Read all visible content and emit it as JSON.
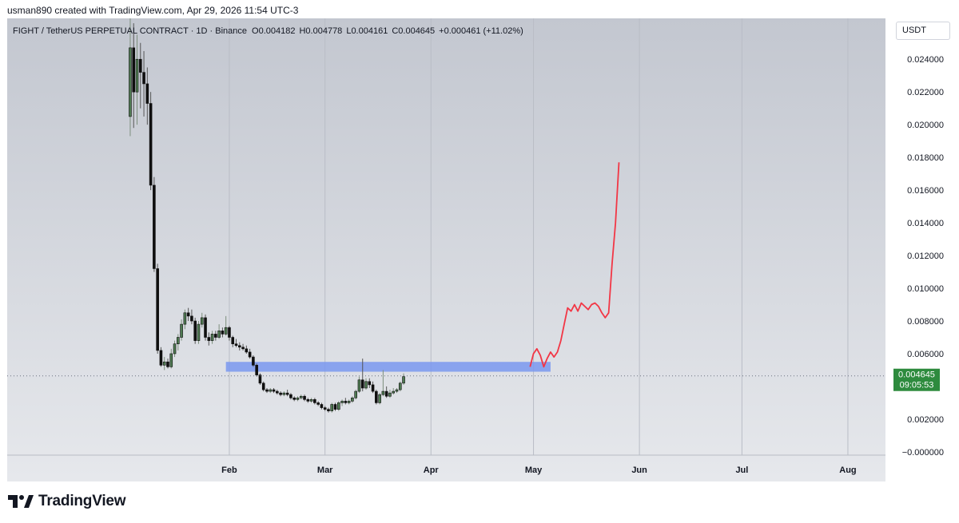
{
  "header": {
    "attribution": "usman890 created with TradingView.com, Apr 29, 2026 11:54 UTC-3"
  },
  "footer": {
    "brand": "TradingView"
  },
  "chart_data": {
    "type": "candlestick",
    "title": "FIGHT / TetherUS PERPETUAL CONTRACT · 1D · Binance",
    "ohlc_text": {
      "open_label": "O",
      "open": "0.004182",
      "high_label": "H",
      "high": "0.004778",
      "low_label": "L",
      "low": "0.004161",
      "close_label": "C",
      "close": "0.004645",
      "change": "+0.000461 (+11.02%)"
    },
    "currency_button": "USDT",
    "y_ticks": [
      "0.024000",
      "0.022000",
      "0.020000",
      "0.018000",
      "0.016000",
      "0.014000",
      "0.012000",
      "0.010000",
      "0.008000",
      "0.006000",
      "0.002000",
      "−0.000000"
    ],
    "y_tick_values": [
      0.024,
      0.022,
      0.02,
      0.018,
      0.016,
      0.014,
      0.012,
      0.01,
      0.008,
      0.006,
      0.002,
      0.0
    ],
    "x_ticks": [
      "Feb",
      "Mar",
      "Apr",
      "May",
      "Jun",
      "Jul",
      "Aug"
    ],
    "x_tick_days": [
      37,
      65,
      96,
      126,
      157,
      187,
      218
    ],
    "ylim": [
      -0.0002,
      0.0265
    ],
    "xlim_days": [
      -28,
      229
    ],
    "last_price": "0.004645",
    "countdown": "09:05:53",
    "last_price_value": 0.004645,
    "zone": {
      "day_start": 36,
      "day_end": 131,
      "low": 0.0049,
      "high": 0.0055,
      "color": "#7a98f0"
    },
    "projection": {
      "color": "#f23645",
      "points": [
        [
          125,
          0.0052
        ],
        [
          126,
          0.006
        ],
        [
          127,
          0.0063
        ],
        [
          128,
          0.0059
        ],
        [
          129,
          0.0052
        ],
        [
          130,
          0.0057
        ],
        [
          131,
          0.0061
        ],
        [
          132,
          0.0058
        ],
        [
          133,
          0.0061
        ],
        [
          134,
          0.0068
        ],
        [
          135,
          0.0078
        ],
        [
          136,
          0.0088
        ],
        [
          137,
          0.0086
        ],
        [
          138,
          0.009
        ],
        [
          139,
          0.0086
        ],
        [
          140,
          0.0091
        ],
        [
          141,
          0.0089
        ],
        [
          142,
          0.0087
        ],
        [
          143,
          0.009
        ],
        [
          144,
          0.0091
        ],
        [
          145,
          0.0089
        ],
        [
          146,
          0.0085
        ],
        [
          147,
          0.0082
        ],
        [
          148,
          0.0085
        ],
        [
          149,
          0.0115
        ],
        [
          150,
          0.014
        ],
        [
          151,
          0.0177
        ]
      ]
    },
    "candles": [
      {
        "d": 0,
        "o": 0.0205,
        "h": 0.0265,
        "l": 0.0193,
        "c": 0.0247
      },
      {
        "d": 1,
        "o": 0.0247,
        "h": 0.0262,
        "l": 0.0198,
        "c": 0.022
      },
      {
        "d": 2,
        "o": 0.022,
        "h": 0.0255,
        "l": 0.02,
        "c": 0.024
      },
      {
        "d": 3,
        "o": 0.024,
        "h": 0.025,
        "l": 0.021,
        "c": 0.0232
      },
      {
        "d": 4,
        "o": 0.0232,
        "h": 0.0245,
        "l": 0.0205,
        "c": 0.0225
      },
      {
        "d": 5,
        "o": 0.0225,
        "h": 0.0235,
        "l": 0.02,
        "c": 0.0213
      },
      {
        "d": 6,
        "o": 0.0213,
        "h": 0.022,
        "l": 0.016,
        "c": 0.0163
      },
      {
        "d": 7,
        "o": 0.0163,
        "h": 0.0168,
        "l": 0.011,
        "c": 0.0112
      },
      {
        "d": 8,
        "o": 0.0112,
        "h": 0.0115,
        "l": 0.006,
        "c": 0.0062
      },
      {
        "d": 9,
        "o": 0.0062,
        "h": 0.0064,
        "l": 0.0052,
        "c": 0.0053
      },
      {
        "d": 10,
        "o": 0.0053,
        "h": 0.0058,
        "l": 0.005,
        "c": 0.0055
      },
      {
        "d": 11,
        "o": 0.0055,
        "h": 0.0057,
        "l": 0.0051,
        "c": 0.0052
      },
      {
        "d": 12,
        "o": 0.0052,
        "h": 0.0063,
        "l": 0.0051,
        "c": 0.006
      },
      {
        "d": 13,
        "o": 0.006,
        "h": 0.0068,
        "l": 0.0058,
        "c": 0.0066
      },
      {
        "d": 14,
        "o": 0.0066,
        "h": 0.0072,
        "l": 0.0062,
        "c": 0.007
      },
      {
        "d": 15,
        "o": 0.007,
        "h": 0.0081,
        "l": 0.0068,
        "c": 0.0078
      },
      {
        "d": 16,
        "o": 0.0078,
        "h": 0.0087,
        "l": 0.0075,
        "c": 0.0085
      },
      {
        "d": 17,
        "o": 0.0085,
        "h": 0.0088,
        "l": 0.008,
        "c": 0.0083
      },
      {
        "d": 18,
        "o": 0.0083,
        "h": 0.0087,
        "l": 0.0078,
        "c": 0.008
      },
      {
        "d": 19,
        "o": 0.008,
        "h": 0.0082,
        "l": 0.0066,
        "c": 0.0068
      },
      {
        "d": 20,
        "o": 0.0068,
        "h": 0.008,
        "l": 0.0066,
        "c": 0.0078
      },
      {
        "d": 21,
        "o": 0.0078,
        "h": 0.0085,
        "l": 0.0076,
        "c": 0.0082
      },
      {
        "d": 22,
        "o": 0.0082,
        "h": 0.0084,
        "l": 0.0068,
        "c": 0.007
      },
      {
        "d": 23,
        "o": 0.007,
        "h": 0.0073,
        "l": 0.0065,
        "c": 0.0068
      },
      {
        "d": 24,
        "o": 0.0068,
        "h": 0.0074,
        "l": 0.0066,
        "c": 0.0072
      },
      {
        "d": 25,
        "o": 0.0072,
        "h": 0.0074,
        "l": 0.0068,
        "c": 0.007
      },
      {
        "d": 26,
        "o": 0.007,
        "h": 0.0078,
        "l": 0.0069,
        "c": 0.0074
      },
      {
        "d": 27,
        "o": 0.0074,
        "h": 0.0076,
        "l": 0.007,
        "c": 0.0072
      },
      {
        "d": 28,
        "o": 0.0072,
        "h": 0.0083,
        "l": 0.0071,
        "c": 0.0076
      },
      {
        "d": 29,
        "o": 0.0076,
        "h": 0.0077,
        "l": 0.0068,
        "c": 0.007
      },
      {
        "d": 30,
        "o": 0.007,
        "h": 0.0071,
        "l": 0.0064,
        "c": 0.0066
      },
      {
        "d": 31,
        "o": 0.0066,
        "h": 0.0069,
        "l": 0.0064,
        "c": 0.0065
      },
      {
        "d": 32,
        "o": 0.0065,
        "h": 0.0067,
        "l": 0.0062,
        "c": 0.0064
      },
      {
        "d": 33,
        "o": 0.0064,
        "h": 0.0066,
        "l": 0.0062,
        "c": 0.0063
      },
      {
        "d": 34,
        "o": 0.0063,
        "h": 0.0065,
        "l": 0.006,
        "c": 0.0061
      },
      {
        "d": 35,
        "o": 0.0061,
        "h": 0.0063,
        "l": 0.0057,
        "c": 0.0058
      },
      {
        "d": 36,
        "o": 0.0058,
        "h": 0.0059,
        "l": 0.0052,
        "c": 0.0053
      },
      {
        "d": 37,
        "o": 0.0053,
        "h": 0.0054,
        "l": 0.0046,
        "c": 0.0047
      },
      {
        "d": 38,
        "o": 0.0047,
        "h": 0.0048,
        "l": 0.0041,
        "c": 0.0042
      },
      {
        "d": 39,
        "o": 0.0042,
        "h": 0.0043,
        "l": 0.0037,
        "c": 0.0038
      },
      {
        "d": 40,
        "o": 0.0038,
        "h": 0.0039,
        "l": 0.0036,
        "c": 0.0037
      },
      {
        "d": 41,
        "o": 0.0037,
        "h": 0.0039,
        "l": 0.0036,
        "c": 0.0038
      },
      {
        "d": 42,
        "o": 0.0038,
        "h": 0.0039,
        "l": 0.0036,
        "c": 0.0037
      },
      {
        "d": 43,
        "o": 0.0037,
        "h": 0.0038,
        "l": 0.0035,
        "c": 0.0036
      },
      {
        "d": 44,
        "o": 0.0036,
        "h": 0.0037,
        "l": 0.0034,
        "c": 0.0035
      },
      {
        "d": 45,
        "o": 0.0035,
        "h": 0.0037,
        "l": 0.0034,
        "c": 0.0036
      },
      {
        "d": 46,
        "o": 0.0036,
        "h": 0.0038,
        "l": 0.0034,
        "c": 0.0035
      },
      {
        "d": 47,
        "o": 0.0035,
        "h": 0.0036,
        "l": 0.0032,
        "c": 0.0033
      },
      {
        "d": 48,
        "o": 0.0033,
        "h": 0.0034,
        "l": 0.0031,
        "c": 0.0032
      },
      {
        "d": 49,
        "o": 0.0032,
        "h": 0.0034,
        "l": 0.0031,
        "c": 0.0033
      },
      {
        "d": 50,
        "o": 0.0033,
        "h": 0.0035,
        "l": 0.0032,
        "c": 0.0034
      },
      {
        "d": 51,
        "o": 0.0034,
        "h": 0.0035,
        "l": 0.0031,
        "c": 0.0032
      },
      {
        "d": 52,
        "o": 0.0032,
        "h": 0.0033,
        "l": 0.003,
        "c": 0.0031
      },
      {
        "d": 53,
        "o": 0.0031,
        "h": 0.0033,
        "l": 0.003,
        "c": 0.0032
      },
      {
        "d": 54,
        "o": 0.0032,
        "h": 0.0033,
        "l": 0.0029,
        "c": 0.003
      },
      {
        "d": 55,
        "o": 0.003,
        "h": 0.0031,
        "l": 0.0028,
        "c": 0.0029
      },
      {
        "d": 56,
        "o": 0.0029,
        "h": 0.003,
        "l": 0.0026,
        "c": 0.0027
      },
      {
        "d": 57,
        "o": 0.0027,
        "h": 0.0028,
        "l": 0.0025,
        "c": 0.0026
      },
      {
        "d": 58,
        "o": 0.0026,
        "h": 0.0027,
        "l": 0.0024,
        "c": 0.0025
      },
      {
        "d": 59,
        "o": 0.0025,
        "h": 0.003,
        "l": 0.0024,
        "c": 0.0029
      },
      {
        "d": 60,
        "o": 0.0029,
        "h": 0.003,
        "l": 0.0025,
        "c": 0.0026
      },
      {
        "d": 61,
        "o": 0.0026,
        "h": 0.0031,
        "l": 0.0025,
        "c": 0.003
      },
      {
        "d": 62,
        "o": 0.003,
        "h": 0.0032,
        "l": 0.0028,
        "c": 0.0031
      },
      {
        "d": 63,
        "o": 0.0031,
        "h": 0.0033,
        "l": 0.0029,
        "c": 0.003
      },
      {
        "d": 64,
        "o": 0.003,
        "h": 0.0032,
        "l": 0.0029,
        "c": 0.0031
      },
      {
        "d": 65,
        "o": 0.0031,
        "h": 0.0034,
        "l": 0.003,
        "c": 0.0033
      },
      {
        "d": 66,
        "o": 0.0033,
        "h": 0.0038,
        "l": 0.0032,
        "c": 0.0037
      },
      {
        "d": 67,
        "o": 0.0037,
        "h": 0.0046,
        "l": 0.0036,
        "c": 0.0044
      },
      {
        "d": 68,
        "o": 0.0044,
        "h": 0.0057,
        "l": 0.0037,
        "c": 0.0039
      },
      {
        "d": 69,
        "o": 0.0039,
        "h": 0.0045,
        "l": 0.0038,
        "c": 0.0043
      },
      {
        "d": 70,
        "o": 0.0043,
        "h": 0.0045,
        "l": 0.0039,
        "c": 0.0041
      },
      {
        "d": 71,
        "o": 0.0041,
        "h": 0.0043,
        "l": 0.0036,
        "c": 0.0037
      },
      {
        "d": 72,
        "o": 0.0037,
        "h": 0.0038,
        "l": 0.0029,
        "c": 0.003
      },
      {
        "d": 73,
        "o": 0.003,
        "h": 0.0036,
        "l": 0.0029,
        "c": 0.0035
      },
      {
        "d": 74,
        "o": 0.0035,
        "h": 0.005,
        "l": 0.0034,
        "c": 0.0037
      },
      {
        "d": 75,
        "o": 0.0037,
        "h": 0.004,
        "l": 0.0033,
        "c": 0.0034
      },
      {
        "d": 76,
        "o": 0.0034,
        "h": 0.0038,
        "l": 0.0033,
        "c": 0.0036
      },
      {
        "d": 77,
        "o": 0.0036,
        "h": 0.0039,
        "l": 0.0035,
        "c": 0.0037
      },
      {
        "d": 78,
        "o": 0.0037,
        "h": 0.0039,
        "l": 0.0036,
        "c": 0.0038
      },
      {
        "d": 79,
        "o": 0.0038,
        "h": 0.0043,
        "l": 0.0037,
        "c": 0.0042
      },
      {
        "d": 80,
        "o": 0.0042,
        "h": 0.0048,
        "l": 0.0041,
        "c": 0.0046
      }
    ],
    "candle_day_offset": 8
  }
}
